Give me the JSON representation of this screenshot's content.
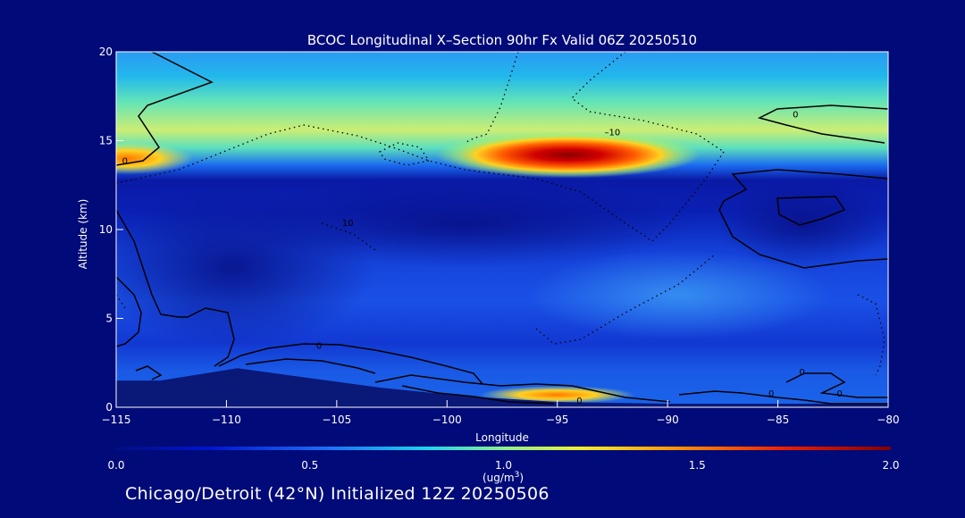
{
  "chart_data": {
    "type": "heatmap",
    "title": "BCOC Longitudinal X–Section 90hr  Fx Valid 06Z 20250510",
    "xlabel": "Longitude",
    "ylabel": "Altitude (km)",
    "xlim": [
      -115,
      -80
    ],
    "ylim": [
      0,
      20
    ],
    "x_ticks": [
      -115,
      -110,
      -105,
      -100,
      -95,
      -90,
      -85,
      -80
    ],
    "x_tick_labels": [
      "−115",
      "−110",
      "−105",
      "−100",
      "−95",
      "−90",
      "−85",
      "−80"
    ],
    "y_ticks": [
      0,
      5,
      10,
      15,
      20
    ],
    "y_tick_labels": [
      "0",
      "5",
      "10",
      "15",
      "20"
    ],
    "colorbar": {
      "min": 0.0,
      "max": 2.0,
      "tick_values": [
        0.0,
        0.5,
        1.0,
        1.5,
        2.0
      ],
      "tick_labels": [
        "0.0",
        "0.5",
        "1.0",
        "1.5",
        "2.0"
      ],
      "unit_main": "(ug/m",
      "unit_sup": "3",
      "unit_end": ")"
    },
    "contour_labels": [
      {
        "text": "0",
        "lon": -114.6,
        "alt": 13.7
      },
      {
        "text": "10",
        "lon": -104.5,
        "alt": 10.2
      },
      {
        "text": "–10",
        "lon": -92.5,
        "alt": 15.3
      },
      {
        "text": "0",
        "lon": -84.2,
        "alt": 16.3
      },
      {
        "text": "0",
        "lon": -105.8,
        "alt": 3.3
      },
      {
        "text": "0",
        "lon": -83.9,
        "alt": 1.8
      },
      {
        "text": "0",
        "lon": -85.3,
        "alt": 0.6
      },
      {
        "text": "0",
        "lon": -82.2,
        "alt": 0.6
      },
      {
        "text": "0",
        "lon": -94.0,
        "alt": 0.2
      }
    ],
    "blobs": [
      {
        "lon": -94.5,
        "alt": 14.2,
        "rlon": 6.0,
        "ralt": 1.3,
        "value": 1.95
      },
      {
        "lon": -114.5,
        "alt": 14.0,
        "rlon": 3.0,
        "ralt": 0.9,
        "value": 1.4
      },
      {
        "lon": -95.0,
        "alt": 0.7,
        "rlon": 3.5,
        "ralt": 0.5,
        "value": 1.6
      }
    ],
    "ground_profile": [
      {
        "lon": -115,
        "alt": 1.5
      },
      {
        "lon": -113,
        "alt": 1.5
      },
      {
        "lon": -111,
        "alt": 1.9
      },
      {
        "lon": -109.5,
        "alt": 2.2
      },
      {
        "lon": -106,
        "alt": 1.6
      },
      {
        "lon": -103,
        "alt": 1.1
      },
      {
        "lon": -99,
        "alt": 0.6
      },
      {
        "lon": -95,
        "alt": 0.3
      },
      {
        "lon": -90,
        "alt": 0.2
      },
      {
        "lon": -85,
        "alt": 0.2
      },
      {
        "lon": -80,
        "alt": 0.2
      }
    ]
  },
  "footer": "Chicago/Detroit (42°N) Initialized 12Z 20250506"
}
